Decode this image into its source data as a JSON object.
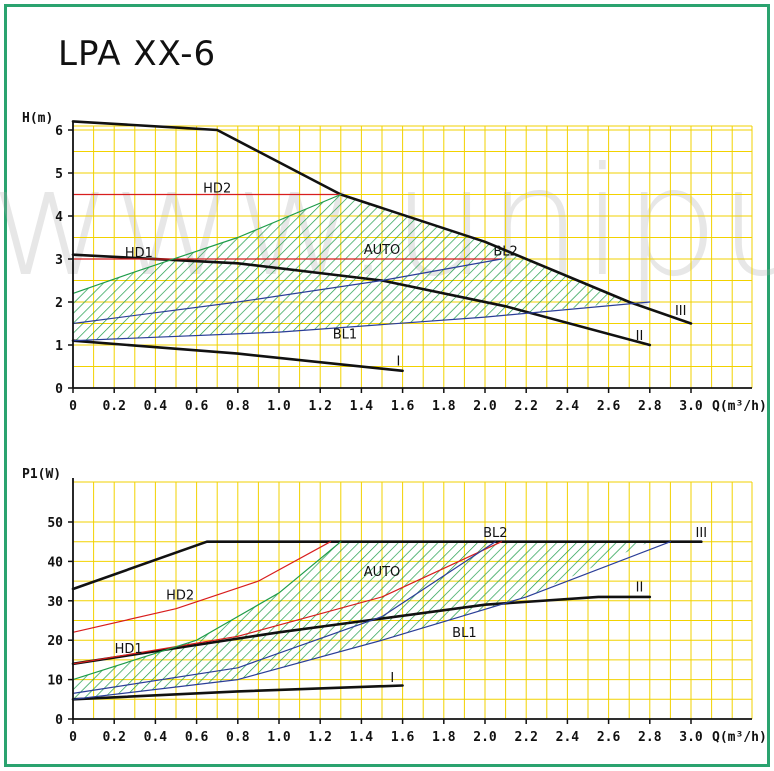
{
  "page": {
    "title": "LPA XX-6",
    "watermark": "www.unipump.ru"
  },
  "colors": {
    "frame": "#2aa36f",
    "grid": "#f2d200",
    "curve": "#111111",
    "hd": "#d81e1e",
    "bl": "#2b3e98",
    "auto": "#1e9c4a"
  },
  "chart_data": [
    {
      "type": "line",
      "xlabel": "Q(m³/h)",
      "ylabel": "H(m)",
      "xlim": [
        0,
        3.0
      ],
      "ylim": [
        0,
        6
      ],
      "x_ticks": [
        "0",
        "0.2",
        "0.4",
        "0.6",
        "0.8",
        "1.0",
        "1.2",
        "1.4",
        "1.6",
        "1.8",
        "2.0",
        "2.2",
        "2.4",
        "2.6",
        "2.8",
        "3.0"
      ],
      "y_ticks": [
        "0",
        "1",
        "2",
        "3",
        "4",
        "5",
        "6"
      ],
      "grid": true,
      "series": [
        {
          "name": "III",
          "color": "#111111",
          "width": 2.6,
          "points": [
            [
              0,
              6.2
            ],
            [
              0.7,
              6.0
            ],
            [
              1.3,
              4.5
            ],
            [
              2.0,
              3.4
            ],
            [
              2.7,
              2.0
            ],
            [
              3.0,
              1.5
            ]
          ]
        },
        {
          "name": "II",
          "color": "#111111",
          "width": 2.6,
          "points": [
            [
              0,
              3.1
            ],
            [
              0.8,
              2.9
            ],
            [
              1.5,
              2.5
            ],
            [
              2.1,
              1.9
            ],
            [
              2.8,
              1.0
            ]
          ]
        },
        {
          "name": "I",
          "color": "#111111",
          "width": 2.6,
          "points": [
            [
              0,
              1.1
            ],
            [
              0.8,
              0.8
            ],
            [
              1.6,
              0.4
            ]
          ]
        },
        {
          "name": "HD2",
          "color": "#d81e1e",
          "width": 1.2,
          "points": [
            [
              0,
              4.5
            ],
            [
              1.3,
              4.5
            ]
          ]
        },
        {
          "name": "HD1",
          "color": "#d81e1e",
          "width": 1.2,
          "points": [
            [
              0,
              3.0
            ],
            [
              2.08,
              3.0
            ]
          ]
        },
        {
          "name": "BL2",
          "color": "#2b3e98",
          "width": 1.2,
          "points": [
            [
              0,
              1.5
            ],
            [
              0.8,
              2.0
            ],
            [
              1.5,
              2.5
            ],
            [
              2.08,
              3.0
            ]
          ]
        },
        {
          "name": "BL1",
          "color": "#2b3e98",
          "width": 1.2,
          "points": [
            [
              0,
              1.1
            ],
            [
              1.0,
              1.3
            ],
            [
              2.0,
              1.65
            ],
            [
              2.8,
              2.0
            ]
          ]
        },
        {
          "name": "AUTO",
          "color": "#1e9c4a",
          "width": 1.2,
          "points": [
            [
              0,
              2.2
            ],
            [
              0.3,
              2.7
            ],
            [
              0.8,
              3.5
            ],
            [
              1.3,
              4.5
            ]
          ]
        }
      ],
      "auto_region": [
        [
          0,
          2.2
        ],
        [
          0.3,
          2.7
        ],
        [
          0.8,
          3.5
        ],
        [
          1.3,
          4.5
        ],
        [
          2.0,
          3.4
        ],
        [
          2.7,
          2.0
        ],
        [
          2.0,
          1.65
        ],
        [
          1.0,
          1.3
        ],
        [
          0,
          1.1
        ]
      ],
      "labels": [
        {
          "text": "HD2",
          "x": 0.7,
          "y": 4.55,
          "color": "#d81e1e"
        },
        {
          "text": "HD1",
          "x": 0.32,
          "y": 3.05,
          "color": "#d81e1e"
        },
        {
          "text": "AUTO",
          "x": 1.5,
          "y": 3.12,
          "color": "#1e9c4a"
        },
        {
          "text": "BL2",
          "x": 2.1,
          "y": 3.08,
          "color": "#2b3e98"
        },
        {
          "text": "BL1",
          "x": 1.32,
          "y": 1.15,
          "color": "#2b3e98"
        },
        {
          "text": "III",
          "x": 2.95,
          "y": 1.7,
          "color": "#111111"
        },
        {
          "text": "II",
          "x": 2.75,
          "y": 1.12,
          "color": "#111111"
        },
        {
          "text": "I",
          "x": 1.58,
          "y": 0.52,
          "color": "#111111"
        }
      ]
    },
    {
      "type": "line",
      "xlabel": "Q(m³/h)",
      "ylabel": "P1(W)",
      "xlim": [
        0,
        3.0
      ],
      "ylim": [
        0,
        50
      ],
      "x_ticks": [
        "0",
        "0.2",
        "0.4",
        "0.6",
        "0.8",
        "1.0",
        "1.2",
        "1.4",
        "1.6",
        "1.8",
        "2.0",
        "2.2",
        "2.4",
        "2.6",
        "2.8",
        "3.0"
      ],
      "y_ticks": [
        "0",
        "10",
        "20",
        "30",
        "40",
        "50"
      ],
      "grid": true,
      "series": [
        {
          "name": "III",
          "color": "#111111",
          "width": 2.6,
          "points": [
            [
              0,
              33
            ],
            [
              0.65,
              45
            ],
            [
              3.05,
              45
            ]
          ]
        },
        {
          "name": "II",
          "color": "#111111",
          "width": 2.6,
          "points": [
            [
              0,
              14
            ],
            [
              1.0,
              22
            ],
            [
              2.0,
              29
            ],
            [
              2.55,
              31
            ],
            [
              2.8,
              31
            ]
          ]
        },
        {
          "name": "I",
          "color": "#111111",
          "width": 2.6,
          "points": [
            [
              0,
              5
            ],
            [
              0.8,
              7
            ],
            [
              1.6,
              8.5
            ]
          ]
        },
        {
          "name": "HD2",
          "color": "#d81e1e",
          "width": 1.2,
          "points": [
            [
              0,
              22
            ],
            [
              0.5,
              28
            ],
            [
              0.9,
              35
            ],
            [
              1.25,
              45
            ]
          ]
        },
        {
          "name": "HD1",
          "color": "#d81e1e",
          "width": 1.2,
          "points": [
            [
              0,
              14
            ],
            [
              0.8,
              21
            ],
            [
              1.5,
              31
            ],
            [
              2.08,
              45
            ]
          ]
        },
        {
          "name": "BL2",
          "color": "#2b3e98",
          "width": 1.2,
          "points": [
            [
              0,
              6.5
            ],
            [
              0.8,
              13
            ],
            [
              1.5,
              26
            ],
            [
              2.05,
              45
            ]
          ]
        },
        {
          "name": "BL1",
          "color": "#2b3e98",
          "width": 1.2,
          "points": [
            [
              0,
              5
            ],
            [
              0.8,
              10
            ],
            [
              1.5,
              20
            ],
            [
              2.2,
              31
            ],
            [
              2.9,
              45
            ]
          ]
        },
        {
          "name": "AUTO",
          "color": "#1e9c4a",
          "width": 1.2,
          "points": [
            [
              0,
              10
            ],
            [
              0.6,
              20
            ],
            [
              1.0,
              32
            ],
            [
              1.3,
              45
            ]
          ]
        }
      ],
      "auto_region": [
        [
          0,
          10
        ],
        [
          0.6,
          20
        ],
        [
          1.0,
          32
        ],
        [
          1.3,
          45
        ],
        [
          2.8,
          45
        ],
        [
          2.2,
          31
        ],
        [
          1.5,
          20
        ],
        [
          0.8,
          10
        ],
        [
          0,
          5
        ]
      ],
      "labels": [
        {
          "text": "BL2",
          "x": 2.05,
          "y": 46.2,
          "color": "#2b3e98"
        },
        {
          "text": "III",
          "x": 3.05,
          "y": 46.2,
          "color": "#111111"
        },
        {
          "text": "AUTO",
          "x": 1.5,
          "y": 36.3,
          "color": "#1e9c4a"
        },
        {
          "text": "HD2",
          "x": 0.52,
          "y": 30.3,
          "color": "#d81e1e"
        },
        {
          "text": "II",
          "x": 2.75,
          "y": 32.3,
          "color": "#111111"
        },
        {
          "text": "BL1",
          "x": 1.9,
          "y": 20.8,
          "color": "#2b3e98"
        },
        {
          "text": "HD1",
          "x": 0.27,
          "y": 16.8,
          "color": "#d81e1e"
        },
        {
          "text": "I",
          "x": 1.55,
          "y": 9.4,
          "color": "#111111"
        }
      ]
    }
  ]
}
